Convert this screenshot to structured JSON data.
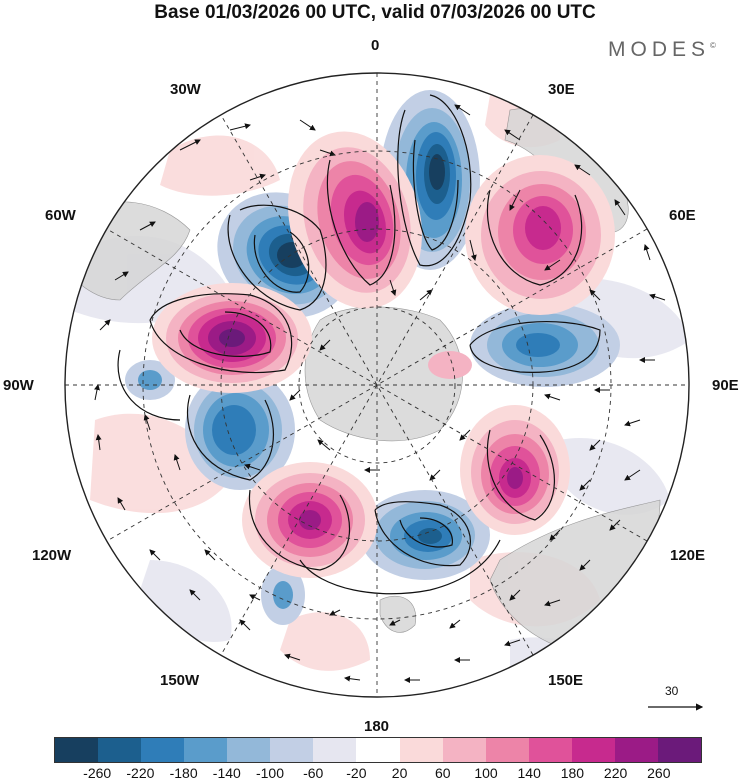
{
  "title": "Base 01/03/2026 00 UTC, valid 07/03/2026 00 UTC",
  "brand": "MODES",
  "brand_mark": "©",
  "meridian_labels": {
    "lon_0": "0",
    "lon_30e": "30E",
    "lon_60e": "60E",
    "lon_90e": "90E",
    "lon_120e": "120E",
    "lon_150e": "150E",
    "lon_180": "180",
    "lon_150w": "150W",
    "lon_120w": "120W",
    "lon_90w": "90W",
    "lon_60w": "60W",
    "lon_30w": "30W"
  },
  "vector_scale_label": "30",
  "colorbar": {
    "colors": [
      "#173f5f",
      "#1c5f8e",
      "#2f7db8",
      "#5a9ccb",
      "#93b8d9",
      "#c2cfe5",
      "#e6e6f0",
      "#ffffff",
      "#fadada",
      "#f4b3c3",
      "#ed84a8",
      "#e0529a",
      "#c72a8e",
      "#9b1b86",
      "#6b1a7a"
    ],
    "tick_labels": [
      "-260",
      "-220",
      "-180",
      "-140",
      "-100",
      "-60",
      "-20",
      "20",
      "60",
      "100",
      "140",
      "180",
      "220",
      "260"
    ]
  }
}
